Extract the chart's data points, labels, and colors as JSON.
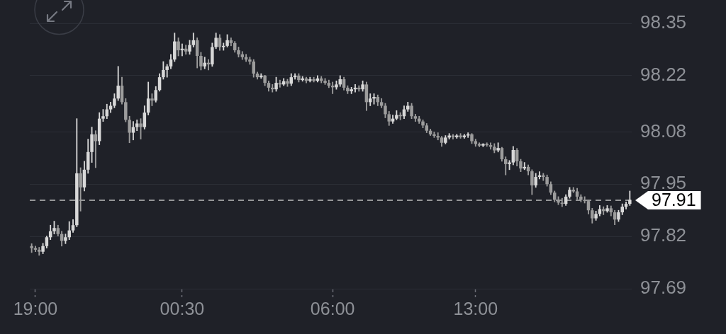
{
  "chart_data": {
    "type": "candlestick",
    "categories": [
      null,
      "19:00",
      null,
      null,
      null,
      null,
      null,
      null,
      null,
      null,
      null,
      null,
      null,
      null,
      null,
      null,
      null,
      null,
      null,
      null,
      null,
      null,
      null,
      null,
      null,
      null,
      null,
      null,
      null,
      null,
      null,
      null,
      null,
      null,
      null,
      null,
      null,
      null,
      null,
      null,
      "00:30",
      null,
      null,
      null,
      null,
      null,
      null,
      null,
      null,
      null,
      null,
      null,
      null,
      null,
      null,
      null,
      null,
      null,
      null,
      null,
      null,
      null,
      null,
      null,
      null,
      null,
      null,
      null,
      null,
      null,
      null,
      null,
      null,
      null,
      null,
      null,
      null,
      null,
      null,
      null,
      "06:00",
      null,
      null,
      null,
      null,
      null,
      null,
      null,
      null,
      null,
      null,
      null,
      null,
      null,
      null,
      null,
      null,
      null,
      null,
      null,
      null,
      null,
      null,
      null,
      null,
      null,
      null,
      null,
      null,
      null,
      null,
      null,
      null,
      null,
      null,
      null,
      null,
      null,
      "13:00",
      null,
      null,
      null,
      null,
      null,
      null,
      null,
      null,
      null,
      null,
      null,
      null,
      null,
      null,
      null,
      null,
      null,
      null,
      null,
      null,
      null,
      null,
      null,
      null,
      null,
      null,
      null,
      null,
      null,
      null,
      null,
      null,
      null,
      null,
      null,
      null,
      null,
      null,
      null,
      null,
      null
    ],
    "ohlc": [
      [
        97.796,
        97.802,
        97.78,
        97.791
      ],
      [
        97.791,
        97.796,
        97.782,
        97.787
      ],
      [
        97.787,
        97.793,
        97.773,
        97.782
      ],
      [
        97.782,
        97.803,
        97.777,
        97.796
      ],
      [
        97.796,
        97.821,
        97.791,
        97.818
      ],
      [
        97.818,
        97.848,
        97.812,
        97.833
      ],
      [
        97.833,
        97.858,
        97.826,
        97.841
      ],
      [
        97.841,
        97.848,
        97.821,
        97.826
      ],
      [
        97.826,
        97.833,
        97.796,
        97.809
      ],
      [
        97.809,
        97.826,
        97.802,
        97.818
      ],
      [
        97.818,
        97.857,
        97.812,
        97.835
      ],
      [
        97.835,
        97.862,
        97.83,
        97.848
      ],
      [
        97.848,
        98.113,
        97.844,
        97.977
      ],
      [
        97.977,
        97.991,
        97.883,
        97.942
      ],
      [
        97.942,
        98.007,
        97.933,
        97.986
      ],
      [
        97.986,
        98.062,
        97.977,
        98.03
      ],
      [
        98.03,
        98.092,
        98.004,
        98.074
      ],
      [
        98.074,
        98.083,
        97.991,
        98.057
      ],
      [
        98.057,
        98.128,
        98.048,
        98.113
      ],
      [
        98.113,
        98.136,
        98.106,
        98.119
      ],
      [
        98.119,
        98.149,
        98.113,
        98.136
      ],
      [
        98.136,
        98.154,
        98.128,
        98.145
      ],
      [
        98.145,
        98.175,
        98.14,
        98.163
      ],
      [
        98.163,
        98.243,
        98.158,
        98.195
      ],
      [
        98.195,
        98.216,
        98.149,
        98.154
      ],
      [
        98.154,
        98.163,
        98.105,
        98.11
      ],
      [
        98.11,
        98.119,
        98.053,
        98.078
      ],
      [
        98.078,
        98.106,
        98.06,
        98.092
      ],
      [
        98.092,
        98.11,
        98.083,
        98.101
      ],
      [
        98.101,
        98.113,
        98.062,
        98.092
      ],
      [
        98.092,
        98.145,
        98.087,
        98.128
      ],
      [
        98.128,
        98.204,
        98.122,
        98.163
      ],
      [
        98.163,
        98.175,
        98.145,
        98.158
      ],
      [
        98.158,
        98.193,
        98.154,
        98.184
      ],
      [
        98.184,
        98.225,
        98.181,
        98.216
      ],
      [
        98.216,
        98.255,
        98.211,
        98.234
      ],
      [
        98.234,
        98.248,
        98.216,
        98.243
      ],
      [
        98.243,
        98.273,
        98.237,
        98.26
      ],
      [
        98.26,
        98.326,
        98.255,
        98.305
      ],
      [
        98.305,
        98.314,
        98.269,
        98.283
      ],
      [
        98.283,
        98.299,
        98.269,
        98.287
      ],
      [
        98.287,
        98.296,
        98.273,
        98.28
      ],
      [
        98.28,
        98.308,
        98.273,
        98.296
      ],
      [
        98.296,
        98.326,
        98.291,
        98.308
      ],
      [
        98.308,
        98.314,
        98.239,
        98.269
      ],
      [
        98.269,
        98.278,
        98.234,
        98.243
      ],
      [
        98.243,
        98.266,
        98.237,
        98.252
      ],
      [
        98.252,
        98.26,
        98.234,
        98.248
      ],
      [
        98.248,
        98.301,
        98.243,
        98.291
      ],
      [
        98.291,
        98.326,
        98.287,
        98.314
      ],
      [
        98.314,
        98.322,
        98.283,
        98.291
      ],
      [
        98.291,
        98.301,
        98.283,
        98.294
      ],
      [
        98.294,
        98.322,
        98.291,
        98.308
      ],
      [
        98.308,
        98.314,
        98.294,
        98.301
      ],
      [
        98.301,
        98.305,
        98.278,
        98.283
      ],
      [
        98.283,
        98.291,
        98.266,
        98.273
      ],
      [
        98.273,
        98.28,
        98.26,
        98.266
      ],
      [
        98.266,
        98.273,
        98.255,
        98.26
      ],
      [
        98.26,
        98.266,
        98.248,
        98.255
      ],
      [
        98.255,
        98.26,
        98.216,
        98.225
      ],
      [
        98.225,
        98.229,
        98.211,
        98.216
      ],
      [
        98.216,
        98.225,
        98.213,
        98.22
      ],
      [
        98.22,
        98.221,
        98.195,
        98.202
      ],
      [
        98.202,
        98.207,
        98.181,
        98.19
      ],
      [
        98.19,
        98.198,
        98.179,
        98.186
      ],
      [
        98.186,
        98.216,
        98.181,
        98.202
      ],
      [
        98.202,
        98.209,
        98.191,
        98.198
      ],
      [
        98.198,
        98.213,
        98.195,
        98.206
      ],
      [
        98.206,
        98.211,
        98.193,
        98.2
      ],
      [
        98.2,
        98.225,
        98.195,
        98.216
      ],
      [
        98.216,
        98.225,
        98.211,
        98.22
      ],
      [
        98.22,
        98.225,
        98.204,
        98.209
      ],
      [
        98.209,
        98.218,
        98.206,
        98.213
      ],
      [
        98.213,
        98.216,
        98.202,
        98.207
      ],
      [
        98.207,
        98.216,
        98.204,
        98.211
      ],
      [
        98.211,
        98.216,
        98.204,
        98.207
      ],
      [
        98.207,
        98.22,
        98.204,
        98.213
      ],
      [
        98.213,
        98.218,
        98.202,
        98.207
      ],
      [
        98.207,
        98.213,
        98.198,
        98.202
      ],
      [
        98.202,
        98.209,
        98.19,
        98.195
      ],
      [
        98.195,
        98.204,
        98.175,
        98.191
      ],
      [
        98.191,
        98.207,
        98.186,
        98.198
      ],
      [
        98.198,
        98.22,
        98.193,
        98.211
      ],
      [
        98.211,
        98.216,
        98.184,
        98.19
      ],
      [
        98.19,
        98.195,
        98.175,
        98.181
      ],
      [
        98.181,
        98.191,
        98.175,
        98.186
      ],
      [
        98.186,
        98.198,
        98.179,
        98.19
      ],
      [
        98.19,
        98.195,
        98.181,
        98.186
      ],
      [
        98.186,
        98.207,
        98.181,
        98.198
      ],
      [
        98.198,
        98.204,
        98.133,
        98.154
      ],
      [
        98.154,
        98.175,
        98.145,
        98.163
      ],
      [
        98.163,
        98.175,
        98.149,
        98.167
      ],
      [
        98.167,
        98.172,
        98.145,
        98.154
      ],
      [
        98.154,
        98.163,
        98.14,
        98.145
      ],
      [
        98.145,
        98.151,
        98.115,
        98.124
      ],
      [
        98.124,
        98.131,
        98.096,
        98.106
      ],
      [
        98.106,
        98.122,
        98.101,
        98.113
      ],
      [
        98.113,
        98.133,
        98.11,
        98.122
      ],
      [
        98.122,
        98.128,
        98.11,
        98.119
      ],
      [
        98.119,
        98.145,
        98.113,
        98.136
      ],
      [
        98.136,
        98.154,
        98.131,
        98.145
      ],
      [
        98.145,
        98.151,
        98.113,
        98.119
      ],
      [
        98.119,
        98.124,
        98.106,
        98.113
      ],
      [
        98.113,
        98.119,
        98.101,
        98.106
      ],
      [
        98.106,
        98.11,
        98.09,
        98.096
      ],
      [
        98.096,
        98.101,
        98.078,
        98.083
      ],
      [
        98.083,
        98.087,
        98.071,
        98.074
      ],
      [
        98.074,
        98.08,
        98.066,
        98.07
      ],
      [
        98.07,
        98.078,
        98.06,
        98.066
      ],
      [
        98.066,
        98.069,
        98.044,
        98.053
      ],
      [
        98.053,
        98.071,
        98.05,
        98.066
      ],
      [
        98.066,
        98.076,
        98.062,
        98.071
      ],
      [
        98.071,
        98.074,
        98.062,
        98.067
      ],
      [
        98.067,
        98.074,
        98.064,
        98.071
      ],
      [
        98.071,
        98.076,
        98.064,
        98.067
      ],
      [
        98.067,
        98.074,
        98.064,
        98.071
      ],
      [
        98.071,
        98.078,
        98.066,
        98.074
      ],
      [
        98.074,
        98.076,
        98.051,
        98.057
      ],
      [
        98.057,
        98.062,
        98.044,
        98.05
      ],
      [
        98.05,
        98.053,
        98.043,
        98.046
      ],
      [
        98.046,
        98.051,
        98.043,
        98.05
      ],
      [
        98.05,
        98.053,
        98.044,
        98.047
      ],
      [
        98.047,
        98.053,
        98.037,
        98.043
      ],
      [
        98.043,
        98.051,
        98.028,
        98.034
      ],
      [
        98.034,
        98.053,
        98.03,
        98.04
      ],
      [
        98.04,
        98.042,
        98.007,
        98.012
      ],
      [
        98.012,
        98.018,
        97.973,
        98.0
      ],
      [
        98.0,
        98.009,
        97.986,
        98.004
      ],
      [
        98.004,
        98.044,
        97.998,
        98.035
      ],
      [
        98.035,
        98.039,
        97.995,
        98.007
      ],
      [
        98.007,
        98.012,
        97.981,
        97.989
      ],
      [
        97.989,
        98.004,
        97.986,
        97.993
      ],
      [
        97.993,
        97.998,
        97.973,
        97.982
      ],
      [
        97.982,
        97.986,
        97.924,
        97.947
      ],
      [
        97.947,
        97.977,
        97.942,
        97.968
      ],
      [
        97.968,
        97.981,
        97.963,
        97.972
      ],
      [
        97.972,
        97.977,
        97.959,
        97.968
      ],
      [
        97.968,
        97.973,
        97.945,
        97.95
      ],
      [
        97.95,
        97.956,
        97.924,
        97.929
      ],
      [
        97.929,
        97.933,
        97.906,
        97.911
      ],
      [
        97.911,
        97.919,
        97.899,
        97.904
      ],
      [
        97.904,
        97.915,
        97.894,
        97.901
      ],
      [
        97.901,
        97.924,
        97.897,
        97.919
      ],
      [
        97.919,
        97.942,
        97.915,
        97.936
      ],
      [
        97.936,
        97.942,
        97.929,
        97.932
      ],
      [
        97.932,
        97.94,
        97.913,
        97.919
      ],
      [
        97.919,
        97.924,
        97.906,
        97.911
      ],
      [
        97.911,
        97.919,
        97.903,
        97.908
      ],
      [
        97.908,
        97.911,
        97.876,
        97.885
      ],
      [
        97.885,
        97.89,
        97.853,
        97.865
      ],
      [
        97.865,
        97.883,
        97.86,
        97.876
      ],
      [
        97.876,
        97.897,
        97.871,
        97.888
      ],
      [
        97.888,
        97.894,
        97.874,
        97.883
      ],
      [
        97.883,
        97.897,
        97.88,
        97.89
      ],
      [
        97.89,
        97.896,
        97.871,
        97.88
      ],
      [
        97.88,
        97.885,
        97.849,
        97.862
      ],
      [
        97.862,
        97.885,
        97.857,
        97.88
      ],
      [
        97.88,
        97.901,
        97.874,
        97.894
      ],
      [
        97.894,
        97.906,
        97.888,
        97.901
      ],
      [
        97.901,
        97.933,
        97.897,
        97.911
      ]
    ],
    "colors": [
      "#9c9c9c",
      "#9c9c9c",
      "#9c9c9c",
      "#d8d8d8",
      "#d8d8d8",
      "#d8d8d8",
      "#d8d8d8",
      "#9c9c9c",
      "#9c9c9c",
      "#d8d8d8",
      "#d8d8d8",
      "#d8d8d8",
      "#d8d8d8",
      "#9c9c9c",
      "#d8d8d8",
      "#d8d8d8",
      "#d8d8d8",
      "#9c9c9c",
      "#d8d8d8",
      "#d8d8d8",
      "#d8d8d8",
      "#d8d8d8",
      "#d8d8d8",
      "#d8d8d8",
      "#9c9c9c",
      "#9c9c9c",
      "#9c9c9c",
      "#d8d8d8",
      "#d8d8d8",
      "#9c9c9c",
      "#d8d8d8",
      "#d8d8d8",
      "#9c9c9c",
      "#d8d8d8",
      "#d8d8d8",
      "#d8d8d8",
      "#d8d8d8",
      "#d8d8d8",
      "#d8d8d8",
      "#9c9c9c",
      "#d8d8d8",
      "#9c9c9c",
      "#d8d8d8",
      "#d8d8d8",
      "#9c9c9c",
      "#9c9c9c",
      "#d8d8d8",
      "#9c9c9c",
      "#d8d8d8",
      "#d8d8d8",
      "#9c9c9c",
      "#d8d8d8",
      "#d8d8d8",
      "#9c9c9c",
      "#9c9c9c",
      "#9c9c9c",
      "#9c9c9c",
      "#9c9c9c",
      "#9c9c9c",
      "#9c9c9c",
      "#9c9c9c",
      "#d8d8d8",
      "#9c9c9c",
      "#9c9c9c",
      "#9c9c9c",
      "#d8d8d8",
      "#9c9c9c",
      "#d8d8d8",
      "#9c9c9c",
      "#d8d8d8",
      "#d8d8d8",
      "#9c9c9c",
      "#d8d8d8",
      "#9c9c9c",
      "#d8d8d8",
      "#9c9c9c",
      "#d8d8d8",
      "#9c9c9c",
      "#9c9c9c",
      "#9c9c9c",
      "#9c9c9c",
      "#d8d8d8",
      "#d8d8d8",
      "#9c9c9c",
      "#9c9c9c",
      "#d8d8d8",
      "#d8d8d8",
      "#9c9c9c",
      "#d8d8d8",
      "#9c9c9c",
      "#d8d8d8",
      "#d8d8d8",
      "#9c9c9c",
      "#9c9c9c",
      "#9c9c9c",
      "#9c9c9c",
      "#d8d8d8",
      "#d8d8d8",
      "#9c9c9c",
      "#d8d8d8",
      "#d8d8d8",
      "#9c9c9c",
      "#9c9c9c",
      "#9c9c9c",
      "#9c9c9c",
      "#9c9c9c",
      "#9c9c9c",
      "#9c9c9c",
      "#9c9c9c",
      "#9c9c9c",
      "#d8d8d8",
      "#d8d8d8",
      "#9c9c9c",
      "#d8d8d8",
      "#9c9c9c",
      "#d8d8d8",
      "#d8d8d8",
      "#9c9c9c",
      "#9c9c9c",
      "#9c9c9c",
      "#d8d8d8",
      "#9c9c9c",
      "#9c9c9c",
      "#9c9c9c",
      "#d8d8d8",
      "#9c9c9c",
      "#9c9c9c",
      "#d8d8d8",
      "#d8d8d8",
      "#9c9c9c",
      "#9c9c9c",
      "#d8d8d8",
      "#9c9c9c",
      "#9c9c9c",
      "#d8d8d8",
      "#d8d8d8",
      "#9c9c9c",
      "#9c9c9c",
      "#9c9c9c",
      "#9c9c9c",
      "#9c9c9c",
      "#9c9c9c",
      "#d8d8d8",
      "#d8d8d8",
      "#9c9c9c",
      "#9c9c9c",
      "#9c9c9c",
      "#9c9c9c",
      "#9c9c9c",
      "#9c9c9c",
      "#d8d8d8",
      "#d8d8d8",
      "#9c9c9c",
      "#d8d8d8",
      "#9c9c9c",
      "#9c9c9c",
      "#d8d8d8",
      "#d8d8d8",
      "#d8d8d8",
      "#d8d8d8"
    ],
    "ylim": [
      97.69,
      98.35
    ],
    "yticks": [
      97.69,
      97.82,
      97.95,
      98.08,
      98.22,
      98.35
    ],
    "grid": "y",
    "ref_lines": [
      {
        "axis": "y",
        "value": 97.91,
        "label": "97.91",
        "color": "#bdbdbd",
        "line_style": "dashed"
      }
    ]
  }
}
